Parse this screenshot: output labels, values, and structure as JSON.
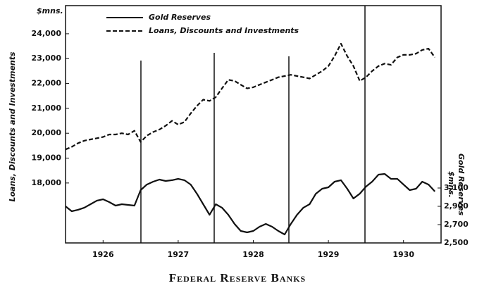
{
  "chart_data": {
    "type": "line",
    "title": "Federal Reserve Banks",
    "y_label": "Loans, Discounts and Investments",
    "y_unit": "$mns.",
    "y2_unit": "$mns.",
    "y2_label": "Gold Reserves",
    "x": [
      1926,
      1926.083,
      1926.167,
      1926.25,
      1926.333,
      1926.417,
      1926.5,
      1926.583,
      1926.667,
      1926.75,
      1926.833,
      1926.917,
      1927,
      1927.083,
      1927.167,
      1927.25,
      1927.333,
      1927.417,
      1927.5,
      1927.583,
      1927.667,
      1927.75,
      1927.833,
      1927.917,
      1928,
      1928.083,
      1928.167,
      1928.25,
      1928.333,
      1928.417,
      1928.5,
      1928.583,
      1928.667,
      1928.75,
      1928.833,
      1928.917,
      1929,
      1929.083,
      1929.167,
      1929.25,
      1929.333,
      1929.417,
      1929.5,
      1929.583,
      1929.667,
      1929.75,
      1929.833,
      1929.917,
      1930,
      1930.083,
      1930.167,
      1930.25,
      1930.333,
      1930.417,
      1930.5,
      1930.583,
      1930.667,
      1930.75,
      1930.833,
      1930.917
    ],
    "series": [
      {
        "name": "Gold Reserves",
        "color": "#111111",
        "style": "solid",
        "axis": "y2",
        "values": [
          2900,
          2846,
          2862,
          2885,
          2923,
          2962,
          2977,
          2946,
          2908,
          2923,
          2915,
          2908,
          3077,
          3138,
          3169,
          3192,
          3177,
          3185,
          3200,
          3185,
          3138,
          3038,
          2923,
          2808,
          2923,
          2885,
          2808,
          2708,
          2631,
          2615,
          2631,
          2677,
          2708,
          2677,
          2631,
          2592,
          2708,
          2808,
          2885,
          2923,
          3038,
          3092,
          3108,
          3169,
          3185,
          3092,
          2985,
          3038,
          3115,
          3169,
          3246,
          3254,
          3200,
          3200,
          3138,
          3077,
          3092,
          3169,
          3138,
          3062
        ]
      },
      {
        "name": "Loans, Discounts and Investments",
        "color": "#111111",
        "style": "dashed",
        "values": [
          19350,
          19450,
          19600,
          19700,
          19750,
          19800,
          19850,
          19950,
          19950,
          20000,
          19950,
          20100,
          19650,
          19900,
          20050,
          20150,
          20300,
          20500,
          20350,
          20450,
          20800,
          21100,
          21350,
          21300,
          21450,
          21800,
          22150,
          22100,
          21950,
          21800,
          21850,
          21950,
          22050,
          22150,
          22250,
          22300,
          22350,
          22300,
          22250,
          22200,
          22350,
          22500,
          22700,
          23100,
          23600,
          23100,
          22700,
          22100,
          22250,
          22500,
          22700,
          22800,
          22750,
          23050,
          23150,
          23150,
          23200,
          23350,
          23400,
          23050
        ]
      }
    ],
    "xlim": [
      1926,
      1931
    ],
    "xticks": [
      {
        "value": 1926.5,
        "label": "1926"
      },
      {
        "value": 1927.5,
        "label": "1927"
      },
      {
        "value": 1928.5,
        "label": "1928"
      },
      {
        "value": 1929.5,
        "label": "1929"
      },
      {
        "value": 1930.5,
        "label": "1930"
      }
    ],
    "ylim": [
      15590,
      25130
    ],
    "yticks": [
      {
        "value": 18000,
        "label": "18,000"
      },
      {
        "value": 19000,
        "label": "19,000"
      },
      {
        "value": 20000,
        "label": "20,000"
      },
      {
        "value": 21000,
        "label": "21,000"
      },
      {
        "value": 22000,
        "label": "22,000"
      },
      {
        "value": 23000,
        "label": "23,000"
      },
      {
        "value": 24000,
        "label": "24,000"
      }
    ],
    "y2lim": [
      2500,
      5092
    ],
    "y2ticks": [
      {
        "value": 2500,
        "label": "2,500"
      },
      {
        "value": 2700,
        "label": "2,700"
      },
      {
        "value": 2900,
        "label": "2,900"
      },
      {
        "value": 3100,
        "label": "3,100"
      }
    ],
    "legend": "top-left"
  }
}
